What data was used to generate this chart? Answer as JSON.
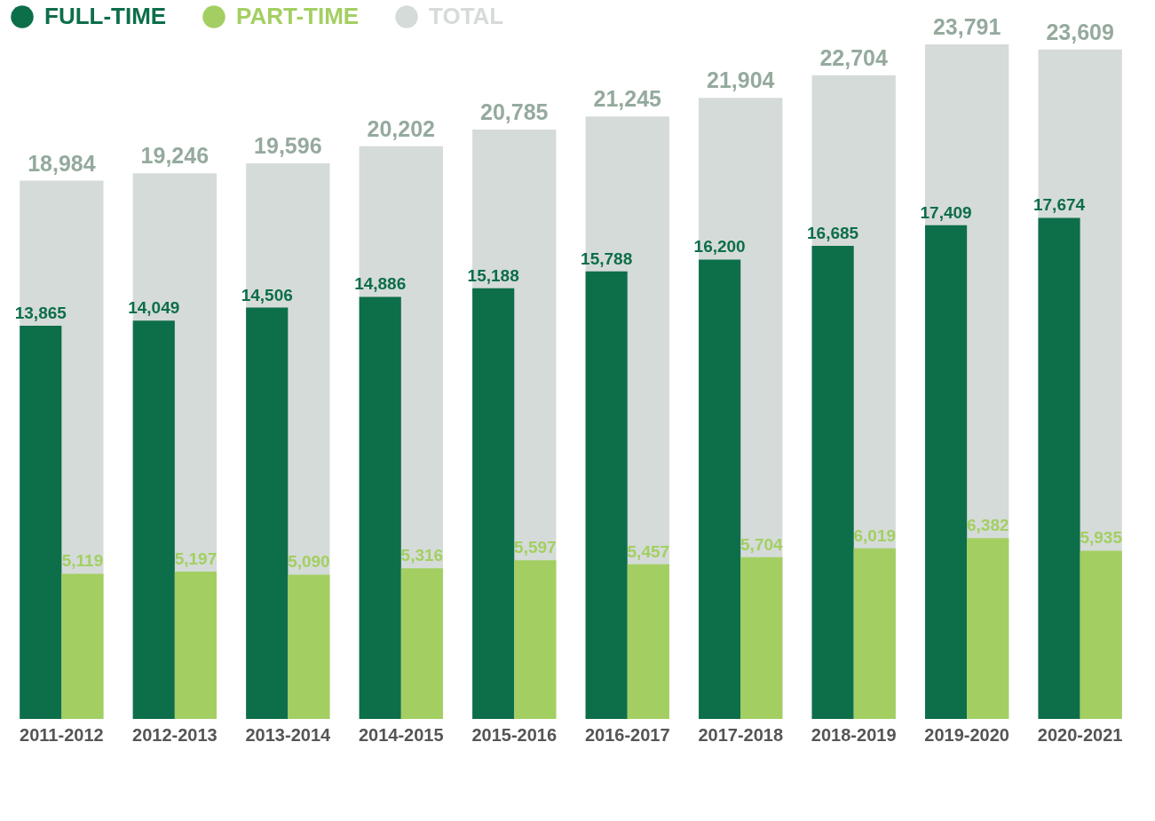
{
  "chart_data": {
    "type": "bar",
    "categories": [
      "2011-2012",
      "2012-2013",
      "2013-2014",
      "2014-2015",
      "2015-2016",
      "2016-2017",
      "2017-2018",
      "2018-2019",
      "2019-2020",
      "2020-2021"
    ],
    "series": [
      {
        "name": "FULL-TIME",
        "color": "#0d6e4a",
        "values": [
          13865,
          14049,
          14506,
          14886,
          15188,
          15788,
          16200,
          16685,
          17409,
          17674
        ],
        "value_labels": [
          "13,865",
          "14,049",
          "14,506",
          "14,886",
          "15,188",
          "15,788",
          "16,200",
          "16,685",
          "17,409",
          "17,674"
        ]
      },
      {
        "name": "PART-TIME",
        "color": "#a3cf62",
        "values": [
          5119,
          5197,
          5090,
          5316,
          5597,
          5457,
          5704,
          6019,
          6382,
          5935
        ],
        "value_labels": [
          "5,119",
          "5,197",
          "5,090",
          "5,316",
          "5,597",
          "5,457",
          "5,704",
          "6,019",
          "6,382",
          "5,935"
        ]
      },
      {
        "name": "TOTAL",
        "color": "#d5dbd8",
        "values": [
          18984,
          19246,
          19596,
          20202,
          20785,
          21245,
          21904,
          22704,
          23791,
          23609
        ],
        "value_labels": [
          "18,984",
          "19,246",
          "19,596",
          "20,202",
          "20,785",
          "21,245",
          "21,904",
          "22,704",
          "23,791",
          "23,609"
        ]
      }
    ],
    "legend": "top"
  }
}
